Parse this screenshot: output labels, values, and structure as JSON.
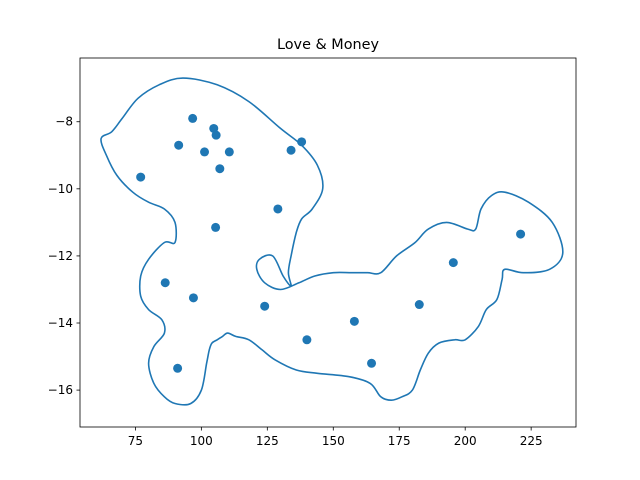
{
  "chart_data": {
    "type": "scatter",
    "title": "Love & Money",
    "xlabel": "",
    "ylabel": "",
    "xlim": [
      54,
      242
    ],
    "ylim": [
      -17.1,
      -6.1
    ],
    "xticks": [
      75,
      100,
      125,
      150,
      175,
      200,
      225
    ],
    "yticks": [
      -16,
      -14,
      -12,
      -10,
      -8
    ],
    "xtick_labels": [
      "75",
      "100",
      "125",
      "150",
      "175",
      "200",
      "225"
    ],
    "ytick_labels": [
      "−16",
      "−14",
      "−12",
      "−10",
      "−8"
    ],
    "grid": false,
    "colors": {
      "points": "#1f77b4",
      "outline": "#1f77b4",
      "frame": "#000000"
    },
    "series": [
      {
        "kind": "points",
        "x": [
          96.7,
          91.4,
          104.7,
          105.6,
          101.2,
          110.6,
          107.0,
          134.0,
          138.0,
          77.0,
          129.0,
          105.4,
          86.3,
          97.0,
          124.0,
          91.0,
          140.0,
          158.0,
          164.5,
          182.6,
          195.5,
          221.0
        ],
        "y": [
          -7.9,
          -8.7,
          -8.2,
          -8.4,
          -8.9,
          -8.9,
          -9.4,
          -8.85,
          -8.6,
          -9.65,
          -10.6,
          -11.15,
          -12.8,
          -13.25,
          -13.5,
          -15.35,
          -14.5,
          -13.95,
          -15.2,
          -13.45,
          -12.2,
          -11.35
        ]
      },
      {
        "kind": "closed-curve",
        "x": [
          93,
          106,
          118,
          130,
          138,
          144,
          146,
          142,
          138,
          136,
          134,
          133,
          134,
          131,
          127,
          122,
          121,
          124,
          130,
          137,
          143,
          150,
          157,
          163,
          168,
          174,
          181,
          186,
          193,
          201,
          204,
          206,
          210,
          215,
          224,
          233,
          237,
          232,
          222,
          215,
          214,
          212,
          208,
          205,
          200,
          196,
          190,
          186,
          183,
          180,
          176,
          172,
          168,
          164,
          156,
          144,
          136,
          128,
          123,
          118,
          113,
          110,
          108,
          106,
          104,
          103,
          102,
          100,
          96,
          90,
          86,
          82,
          80,
          82,
          86,
          85,
          80,
          77,
          77,
          80,
          86,
          90,
          90,
          86,
          80,
          74,
          68,
          64,
          62,
          66,
          70,
          76,
          84
        ],
        "y": [
          -6.7,
          -6.9,
          -7.4,
          -8.2,
          -8.7,
          -9.3,
          -10.0,
          -10.6,
          -10.9,
          -11.3,
          -12.0,
          -12.5,
          -12.9,
          -12.6,
          -12.0,
          -12.1,
          -12.4,
          -12.8,
          -13.0,
          -12.8,
          -12.6,
          -12.5,
          -12.5,
          -12.5,
          -12.5,
          -12.0,
          -11.6,
          -11.2,
          -11.0,
          -11.2,
          -11.2,
          -10.6,
          -10.2,
          -10.1,
          -10.4,
          -11.0,
          -11.9,
          -12.4,
          -12.5,
          -12.4,
          -12.7,
          -13.3,
          -13.6,
          -14.1,
          -14.5,
          -14.5,
          -14.6,
          -14.9,
          -15.4,
          -16.0,
          -16.2,
          -16.3,
          -16.2,
          -15.8,
          -15.6,
          -15.5,
          -15.4,
          -15.1,
          -14.8,
          -14.5,
          -14.4,
          -14.3,
          -14.4,
          -14.5,
          -14.6,
          -14.8,
          -15.2,
          -16.0,
          -16.4,
          -16.4,
          -16.2,
          -15.8,
          -15.2,
          -14.7,
          -14.3,
          -13.9,
          -13.6,
          -13.2,
          -12.6,
          -12.1,
          -11.6,
          -11.6,
          -11.0,
          -10.6,
          -10.4,
          -10.1,
          -9.6,
          -9.0,
          -8.5,
          -8.3,
          -7.9,
          -7.3,
          -6.9
        ]
      }
    ]
  }
}
